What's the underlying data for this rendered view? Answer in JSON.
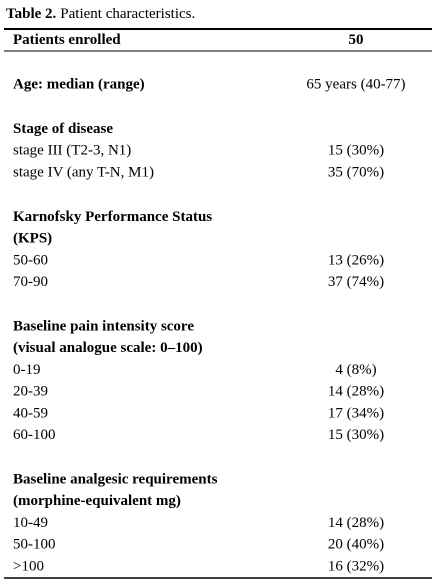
{
  "caption": {
    "label": "Table 2.",
    "text": "Patient characteristics."
  },
  "header": [
    "Patients enrolled",
    "50"
  ],
  "sections": [
    {
      "heading": [
        "Age: median (range)"
      ],
      "heading_value": "65 years (40-77)",
      "rows": []
    },
    {
      "heading": [
        "Stage of disease"
      ],
      "rows": [
        [
          "stage III (T2-3, N1)",
          "15 (30%)"
        ],
        [
          "stage IV (any T-N, M1)",
          "35 (70%)"
        ]
      ]
    },
    {
      "heading": [
        "Karnofsky Performance Status",
        "(KPS)"
      ],
      "rows": [
        [
          "50-60",
          "13 (26%)"
        ],
        [
          "70-90",
          "37 (74%)"
        ]
      ]
    },
    {
      "heading": [
        "Baseline pain intensity score",
        "(visual analogue scale: 0–100)"
      ],
      "rows": [
        [
          "0-19",
          "4 (8%)"
        ],
        [
          "20-39",
          "14 (28%)"
        ],
        [
          "40-59",
          "17 (34%)"
        ],
        [
          "60-100",
          "15 (30%)"
        ]
      ]
    },
    {
      "heading": [
        "Baseline analgesic requirements",
        "(morphine-equivalent mg)"
      ],
      "rows": [
        [
          "10-49",
          "14 (28%)"
        ],
        [
          "50-100",
          "20 (40%)"
        ],
        [
          ">100",
          "16 (32%)"
        ]
      ]
    }
  ]
}
